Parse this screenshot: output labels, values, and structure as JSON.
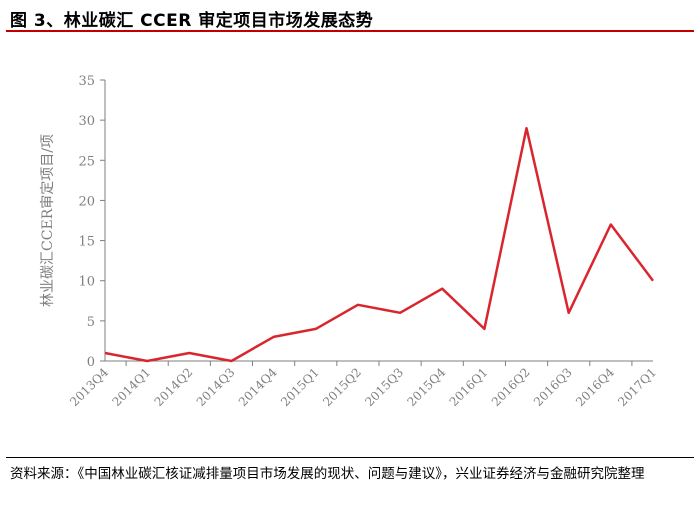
{
  "header": {
    "title": "图 3、林业碳汇 CCER 审定项目市场发展态势"
  },
  "footer": {
    "source": "资料来源：《中国林业碳汇核证减排量项目市场发展的现状、问题与建议》，兴业证券经济与金融研究院整理"
  },
  "chart_data": {
    "type": "line",
    "title": "",
    "xlabel": "",
    "ylabel": "林业碳汇CCER审定项目/项",
    "ylim": [
      0,
      35
    ],
    "yticks": [
      "0",
      "5",
      "10",
      "15",
      "20",
      "25",
      "30",
      "35"
    ],
    "categories": [
      "2013Q4",
      "2014Q1",
      "2014Q2",
      "2014Q3",
      "2014Q4",
      "2015Q1",
      "2015Q2",
      "2015Q3",
      "2015Q4",
      "2016Q1",
      "2016Q2",
      "2016Q3",
      "2016Q4",
      "2017Q1"
    ],
    "series": [
      {
        "values": [
          1,
          0,
          1,
          0,
          3,
          4,
          7,
          6,
          9,
          4,
          29,
          6,
          17,
          10
        ],
        "color": "#d9262e"
      }
    ],
    "grid": false,
    "legend": "none"
  }
}
